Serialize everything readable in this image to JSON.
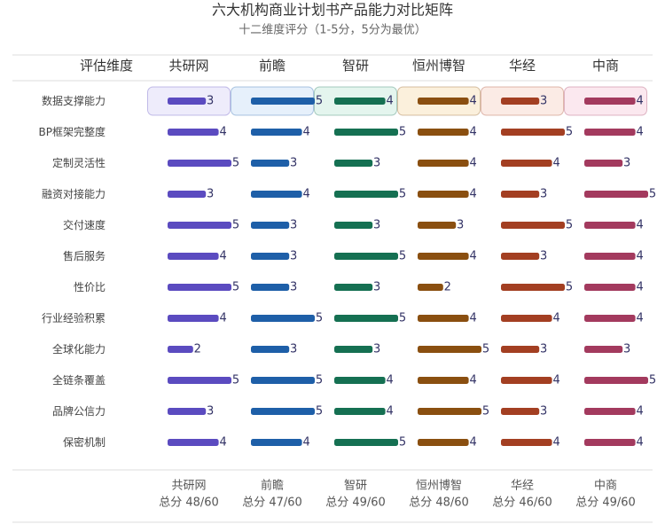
{
  "chart_data": {
    "type": "bar",
    "title": "六大机构商业计划书产品能力对比矩阵",
    "subtitle": "十二维度评分（1-5分，5分为最优）",
    "header_label": "评估维度",
    "max_score": 5,
    "dimensions": [
      "数据支撑能力",
      "BP框架完整度",
      "定制灵活性",
      "融资对接能力",
      "交付速度",
      "售后服务",
      "性价比",
      "行业经验积累",
      "全球化能力",
      "全链条覆盖",
      "品牌公信力",
      "保密机制"
    ],
    "series": [
      {
        "name": "共研网",
        "color": "#5b4bc0",
        "bg": "#eeecfb",
        "values": [
          3,
          4,
          5,
          3,
          5,
          4,
          5,
          4,
          2,
          5,
          3,
          4
        ],
        "total_label": "总分 48/60"
      },
      {
        "name": "前瞻",
        "color": "#1e5fa8",
        "bg": "#e6f0fb",
        "values": [
          5,
          4,
          3,
          4,
          3,
          3,
          3,
          5,
          3,
          5,
          5,
          4
        ],
        "total_label": "总分 47/60"
      },
      {
        "name": "智研",
        "color": "#157052",
        "bg": "#e4f5ee",
        "values": [
          4,
          5,
          3,
          5,
          3,
          5,
          3,
          5,
          3,
          4,
          4,
          5
        ],
        "total_label": "总分 49/60"
      },
      {
        "name": "恒州博智",
        "color": "#8a4f10",
        "bg": "#fbf0dc",
        "values": [
          4,
          4,
          4,
          4,
          3,
          4,
          2,
          4,
          5,
          4,
          5,
          4
        ],
        "total_label": "总分 48/60"
      },
      {
        "name": "华经",
        "color": "#a33f22",
        "bg": "#fbebe5",
        "values": [
          3,
          5,
          4,
          3,
          5,
          3,
          5,
          4,
          3,
          4,
          3,
          4
        ],
        "total_label": "总分 46/60"
      },
      {
        "name": "中商",
        "color": "#a33a5e",
        "bg": "#fbe8ef",
        "values": [
          4,
          4,
          3,
          5,
          4,
          4,
          4,
          4,
          3,
          5,
          4,
          4
        ],
        "total_label": "总分 49/60"
      }
    ]
  }
}
